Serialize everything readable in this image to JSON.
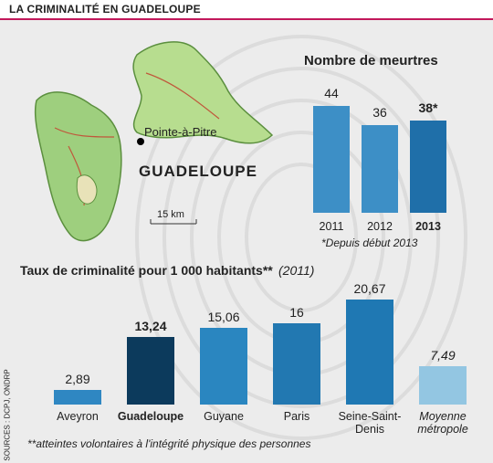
{
  "title": "LA CRIMINALITÉ EN GUADELOUPE",
  "map": {
    "label": "GUADELOUPE",
    "city": "Pointe-à-Pitre",
    "scale": "15 km"
  },
  "source": "SOURCES : DCPJ, ONDRP",
  "chart_data": [
    {
      "type": "bar",
      "title": "Nombre de meurtres",
      "categories": [
        "2011",
        "2012",
        "2013"
      ],
      "values": [
        44,
        36,
        38
      ],
      "value_labels": [
        "44",
        "36",
        "38*"
      ],
      "colors": [
        "#3d8fc6",
        "#3d8fc6",
        "#1f6fa9"
      ],
      "emphasis": 2,
      "note": "*Depuis début 2013"
    },
    {
      "type": "bar",
      "title": "Taux de criminalité pour 1 000 habitants**",
      "subtitle": "(2011)",
      "categories": [
        "Aveyron",
        "Guadeloupe",
        "Guyane",
        "Paris",
        "Seine-Saint-Denis",
        "Moyenne métropole"
      ],
      "values": [
        2.89,
        13.24,
        15.06,
        16,
        20.67,
        7.49
      ],
      "value_labels": [
        "2,89",
        "13,24",
        "15,06",
        "16",
        "20,67",
        "7,49"
      ],
      "colors": [
        "#2f87c2",
        "#0c3a5c",
        "#2a86c0",
        "#2278b1",
        "#1f78b3",
        "#93c6e2"
      ],
      "emphasis": 1,
      "italic": 5,
      "note": "**atteintes volontaires à l'intégrité physique des personnes"
    }
  ]
}
